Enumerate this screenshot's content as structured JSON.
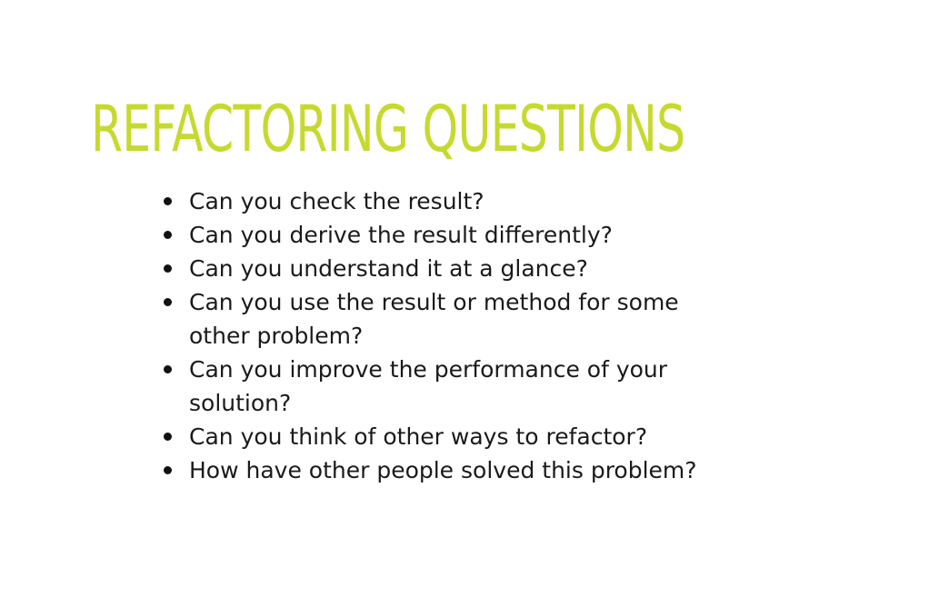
{
  "slide": {
    "title": "REFACTORING QUESTIONS",
    "accent_color": "#c6d92e",
    "bullets": [
      "Can you check the result?",
      "Can you derive the result differently?",
      "Can you understand it at a glance?",
      "Can you use the result or method for some other problem?",
      "Can you improve the performance of your solution?",
      "Can you think of other ways to refactor?",
      "How have other people solved this problem?"
    ]
  }
}
